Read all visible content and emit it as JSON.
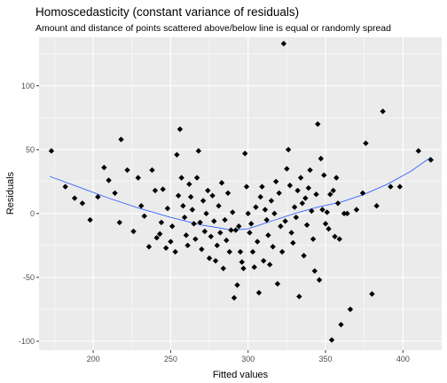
{
  "chart_data": {
    "type": "scatter",
    "title": "Homoscedasticity (constant variance of residuals)",
    "subtitle": "Amount and distance of points scattered above/below line is equal or randomly spread",
    "xlabel": "Fitted values",
    "ylabel": "Residuals",
    "xlim": [
      165,
      425
    ],
    "ylim": [
      -107,
      138
    ],
    "xticks": [
      200,
      250,
      300,
      350,
      400
    ],
    "yticks": [
      -100,
      -50,
      0,
      50,
      100
    ],
    "grid": true,
    "legend": "none",
    "colors": {
      "panel": "#ebebeb",
      "grid": "#ffffff",
      "points": "#000000",
      "smooth": "#3366ff",
      "tick_text": "#4d4d4d"
    },
    "smooth": [
      [
        172,
        29
      ],
      [
        190,
        21
      ],
      [
        210,
        12
      ],
      [
        230,
        4
      ],
      [
        250,
        -3
      ],
      [
        270,
        -9
      ],
      [
        290,
        -13
      ],
      [
        300,
        -12
      ],
      [
        315,
        -6
      ],
      [
        330,
        0
      ],
      [
        345,
        5
      ],
      [
        360,
        9
      ],
      [
        375,
        15
      ],
      [
        390,
        23
      ],
      [
        405,
        33
      ],
      [
        418,
        44
      ]
    ],
    "points": [
      [
        173,
        49
      ],
      [
        182,
        21
      ],
      [
        188,
        12
      ],
      [
        193,
        8
      ],
      [
        198,
        -5
      ],
      [
        203,
        13
      ],
      [
        207,
        36
      ],
      [
        210,
        26
      ],
      [
        214,
        16
      ],
      [
        217,
        -7
      ],
      [
        218,
        58
      ],
      [
        222,
        34
      ],
      [
        226,
        -14
      ],
      [
        229,
        28
      ],
      [
        231,
        6
      ],
      [
        233,
        -2
      ],
      [
        236,
        -26
      ],
      [
        238,
        34
      ],
      [
        240,
        18
      ],
      [
        241,
        -19
      ],
      [
        243,
        -16
      ],
      [
        244,
        -7
      ],
      [
        245,
        19
      ],
      [
        247,
        -27
      ],
      [
        248,
        4
      ],
      [
        250,
        -22
      ],
      [
        251,
        -10
      ],
      [
        253,
        -30
      ],
      [
        254,
        46
      ],
      [
        255,
        14
      ],
      [
        256,
        66
      ],
      [
        257,
        28
      ],
      [
        258,
        6
      ],
      [
        259,
        -3
      ],
      [
        260,
        -17
      ],
      [
        261,
        -25
      ],
      [
        262,
        23
      ],
      [
        263,
        13
      ],
      [
        264,
        3
      ],
      [
        265,
        -8
      ],
      [
        266,
        -20
      ],
      [
        267,
        28
      ],
      [
        268,
        49
      ],
      [
        269,
        -7
      ],
      [
        270,
        -28
      ],
      [
        271,
        10
      ],
      [
        272,
        -14
      ],
      [
        273,
        0
      ],
      [
        274,
        18
      ],
      [
        275,
        -35
      ],
      [
        276,
        -18
      ],
      [
        277,
        14
      ],
      [
        278,
        -6
      ],
      [
        279,
        -37
      ],
      [
        280,
        -25
      ],
      [
        281,
        6
      ],
      [
        282,
        -15
      ],
      [
        283,
        24
      ],
      [
        284,
        -43
      ],
      [
        285,
        -5
      ],
      [
        286,
        -21
      ],
      [
        287,
        16
      ],
      [
        288,
        -30
      ],
      [
        289,
        -13
      ],
      [
        290,
        1
      ],
      [
        291,
        -66
      ],
      [
        292,
        -13
      ],
      [
        293,
        -56
      ],
      [
        294,
        -10
      ],
      [
        295,
        -30
      ],
      [
        296,
        -38
      ],
      [
        297,
        -43
      ],
      [
        298,
        47
      ],
      [
        299,
        21
      ],
      [
        300,
        0
      ],
      [
        301,
        -15
      ],
      [
        302,
        -8
      ],
      [
        303,
        -30
      ],
      [
        304,
        -42
      ],
      [
        305,
        5
      ],
      [
        306,
        -22
      ],
      [
        307,
        -62
      ],
      [
        308,
        13
      ],
      [
        309,
        21
      ],
      [
        310,
        -37
      ],
      [
        311,
        3
      ],
      [
        312,
        -5
      ],
      [
        313,
        -17
      ],
      [
        314,
        -40
      ],
      [
        315,
        10
      ],
      [
        316,
        -26
      ],
      [
        317,
        0
      ],
      [
        318,
        25
      ],
      [
        319,
        -55
      ],
      [
        320,
        16
      ],
      [
        321,
        -10
      ],
      [
        322,
        -30
      ],
      [
        323,
        133
      ],
      [
        324,
        -6
      ],
      [
        325,
        35
      ],
      [
        326,
        50
      ],
      [
        327,
        22
      ],
      [
        328,
        -15
      ],
      [
        329,
        -23
      ],
      [
        330,
        5
      ],
      [
        331,
        -3
      ],
      [
        332,
        18
      ],
      [
        333,
        -65
      ],
      [
        334,
        28
      ],
      [
        335,
        8
      ],
      [
        336,
        -33
      ],
      [
        337,
        12
      ],
      [
        338,
        -9
      ],
      [
        339,
        20
      ],
      [
        340,
        34
      ],
      [
        341,
        2
      ],
      [
        342,
        -20
      ],
      [
        343,
        -45
      ],
      [
        344,
        15
      ],
      [
        345,
        70
      ],
      [
        346,
        -52
      ],
      [
        347,
        43
      ],
      [
        348,
        3
      ],
      [
        349,
        30
      ],
      [
        350,
        -8
      ],
      [
        351,
        1
      ],
      [
        352,
        -12
      ],
      [
        353,
        15
      ],
      [
        354,
        -99
      ],
      [
        355,
        18
      ],
      [
        356,
        -18
      ],
      [
        357,
        28
      ],
      [
        358,
        8
      ],
      [
        359,
        -20
      ],
      [
        360,
        -87
      ],
      [
        362,
        0
      ],
      [
        364,
        0
      ],
      [
        366,
        -75
      ],
      [
        370,
        3
      ],
      [
        374,
        16
      ],
      [
        376,
        55
      ],
      [
        380,
        -63
      ],
      [
        383,
        6
      ],
      [
        387,
        80
      ],
      [
        392,
        21
      ],
      [
        398,
        21
      ],
      [
        410,
        49
      ],
      [
        418,
        42
      ]
    ]
  }
}
